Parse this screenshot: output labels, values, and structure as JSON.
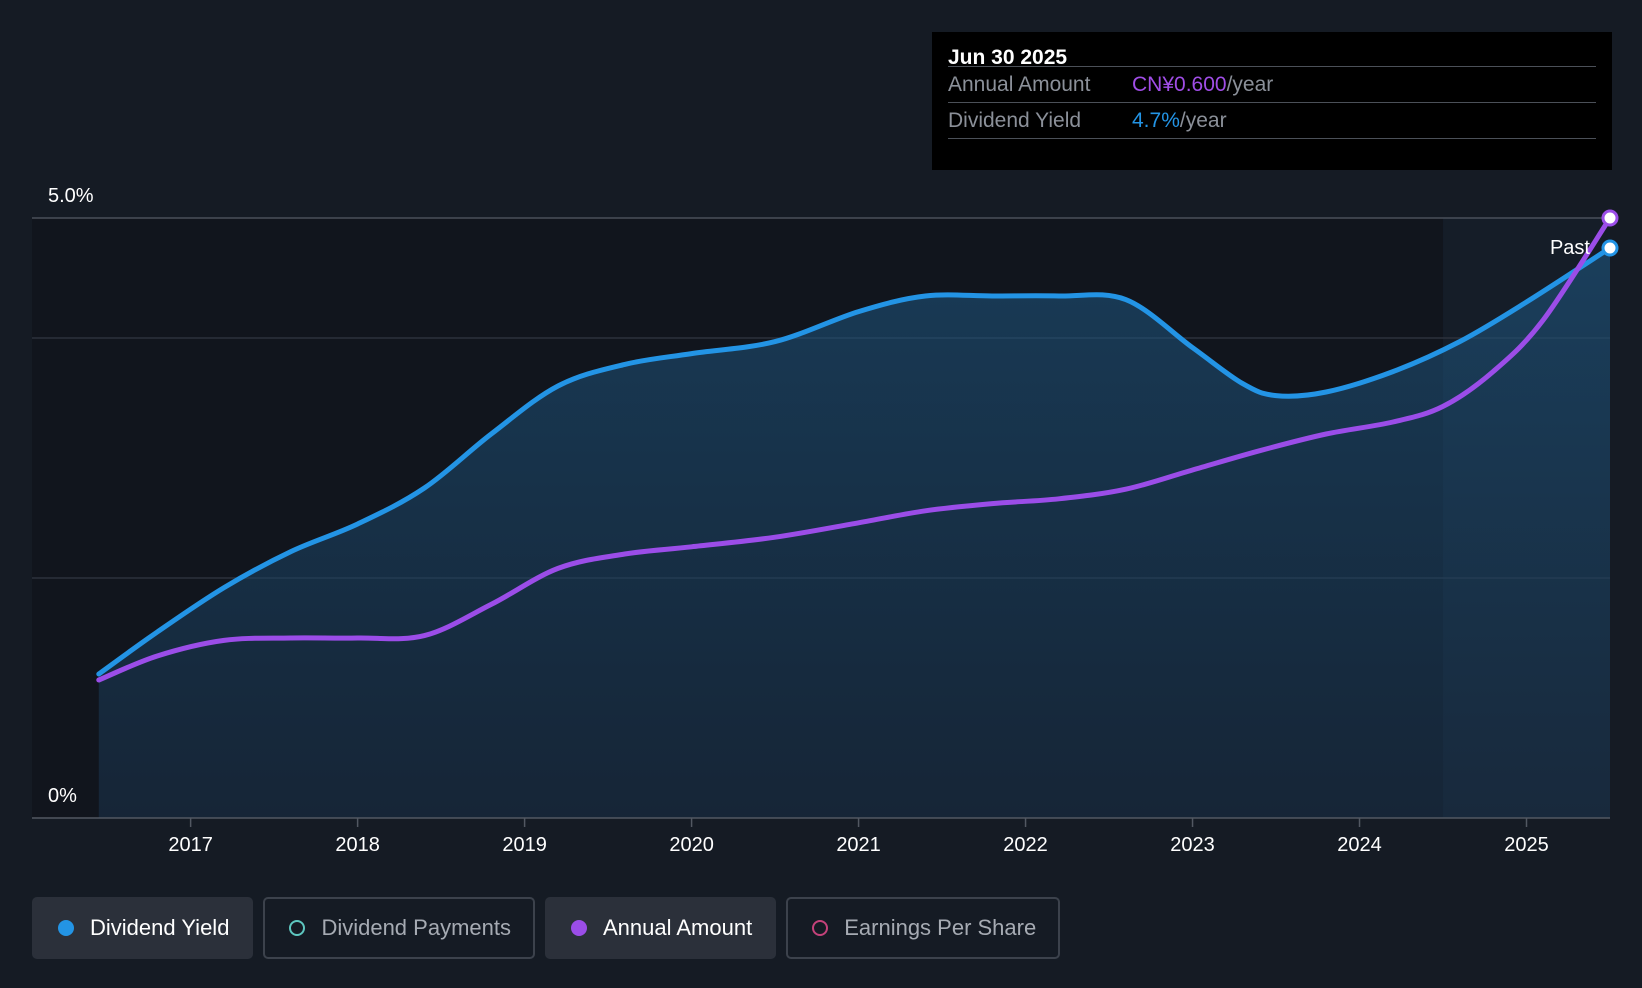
{
  "colors": {
    "background": "#151b24",
    "yield": "#2394e5",
    "annual": "#9b4de8",
    "payments": "#5ec7c0",
    "eps": "#c4427a"
  },
  "tooltip": {
    "date": "Jun 30 2025",
    "rows": [
      {
        "label": "Annual Amount",
        "value": "CN¥0.600",
        "unit": "/year",
        "color": "#a04de6"
      },
      {
        "label": "Dividend Yield",
        "value": "4.7%",
        "unit": "/year",
        "color": "#2394e5"
      }
    ]
  },
  "legend": [
    {
      "label": "Dividend Yield",
      "active": true,
      "color": "#2394e5"
    },
    {
      "label": "Dividend Payments",
      "active": false,
      "color": "#5ec7c0"
    },
    {
      "label": "Annual Amount",
      "active": true,
      "color": "#9b4de8"
    },
    {
      "label": "Earnings Per Share",
      "active": false,
      "color": "#c4427a"
    }
  ],
  "chart_data": {
    "type": "line",
    "title": "",
    "xlabel": "",
    "ylabel": "",
    "y_tick_labels": [
      "5.0%",
      "0%"
    ],
    "ylim": [
      0,
      5.0
    ],
    "xlim": [
      2016.05,
      2025.5
    ],
    "x_ticks": [
      2017,
      2018,
      2019,
      2020,
      2021,
      2022,
      2023,
      2024,
      2025
    ],
    "past_label": "Past",
    "past_start": 2024.5,
    "series": [
      {
        "name": "Dividend Yield",
        "filled": true,
        "x": [
          2016.45,
          2016.8,
          2017.2,
          2017.6,
          2018.0,
          2018.4,
          2018.8,
          2019.2,
          2019.6,
          2020.0,
          2020.5,
          2021.0,
          2021.4,
          2021.8,
          2022.2,
          2022.6,
          2023.0,
          2023.3,
          2023.5,
          2023.8,
          2024.2,
          2024.6,
          2025.0,
          2025.5
        ],
        "y": [
          1.2,
          1.55,
          1.92,
          2.22,
          2.45,
          2.75,
          3.2,
          3.6,
          3.78,
          3.87,
          3.97,
          4.22,
          4.35,
          4.35,
          4.35,
          4.32,
          3.92,
          3.62,
          3.52,
          3.55,
          3.72,
          3.97,
          4.3,
          4.75
        ]
      },
      {
        "name": "Annual Amount",
        "filled": false,
        "x": [
          2016.45,
          2016.8,
          2017.2,
          2017.6,
          2018.0,
          2018.4,
          2018.8,
          2019.2,
          2019.6,
          2020.0,
          2020.5,
          2021.0,
          2021.4,
          2021.8,
          2022.2,
          2022.6,
          2023.0,
          2023.4,
          2023.8,
          2024.2,
          2024.5,
          2024.8,
          2025.1,
          2025.5
        ],
        "y": [
          1.15,
          1.35,
          1.48,
          1.5,
          1.5,
          1.52,
          1.78,
          2.08,
          2.2,
          2.26,
          2.34,
          2.46,
          2.56,
          2.62,
          2.66,
          2.74,
          2.9,
          3.06,
          3.2,
          3.3,
          3.43,
          3.72,
          4.15,
          5.0
        ]
      }
    ]
  }
}
